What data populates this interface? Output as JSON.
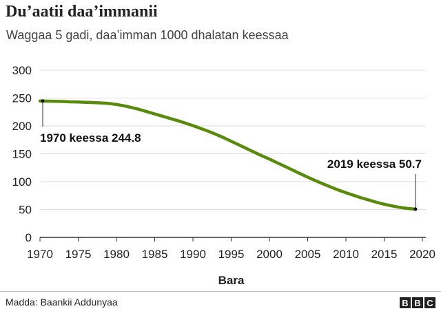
{
  "title": "Du’aatii daa’immanii",
  "subtitle": "Waggaa 5 gadi, daa’imman 1000 dhalatan keessaa",
  "source": "Madda: Baankii Addunyaa",
  "logo": [
    "B",
    "B",
    "C"
  ],
  "colors": {
    "line": "#588a0c",
    "grid": "#dddddd",
    "text": "#222222"
  },
  "chart_data": {
    "type": "line",
    "title": "Du’aatii daa’immanii",
    "subtitle": "Waggaa 5 gadi, daa’imman 1000 dhalatan keessaa",
    "xlabel": "Bara",
    "ylabel": "",
    "xlim": [
      1970,
      2020
    ],
    "ylim": [
      0,
      300
    ],
    "x_ticks": [
      1970,
      1975,
      1980,
      1985,
      1990,
      1995,
      2000,
      2005,
      2010,
      2015,
      2020
    ],
    "y_ticks": [
      0,
      50,
      100,
      150,
      200,
      250,
      300
    ],
    "grid": true,
    "series": [
      {
        "x": [
          1970,
          1971,
          1972,
          1973,
          1974,
          1975,
          1976,
          1977,
          1978,
          1979,
          1980,
          1981,
          1982,
          1983,
          1984,
          1985,
          1986,
          1987,
          1988,
          1989,
          1990,
          1991,
          1992,
          1993,
          1994,
          1995,
          1996,
          1997,
          1998,
          1999,
          2000,
          2001,
          2002,
          2003,
          2004,
          2005,
          2006,
          2007,
          2008,
          2009,
          2010,
          2011,
          2012,
          2013,
          2014,
          2015,
          2016,
          2017,
          2018,
          2019
        ],
        "y": [
          244.8,
          244.5,
          244.2,
          243.8,
          243.2,
          242.8,
          242.3,
          241.8,
          241.2,
          240.2,
          238.5,
          236.0,
          233.0,
          229.5,
          225.5,
          221.5,
          217.5,
          213.5,
          209.5,
          205.0,
          200.5,
          195.5,
          190.5,
          185.0,
          179.0,
          172.5,
          166.0,
          159.5,
          153.0,
          146.5,
          140.5,
          134.0,
          127.5,
          121.0,
          114.5,
          108.0,
          102.0,
          96.0,
          90.5,
          85.0,
          80.0,
          75.5,
          71.0,
          67.0,
          63.0,
          59.5,
          56.5,
          54.0,
          52.0,
          50.7
        ]
      }
    ],
    "annotations": [
      {
        "x": 1970,
        "y": 244.8,
        "text": "1970 keessa 244.8"
      },
      {
        "x": 2019,
        "y": 50.7,
        "text": "2019 keessa 50.7"
      }
    ]
  }
}
